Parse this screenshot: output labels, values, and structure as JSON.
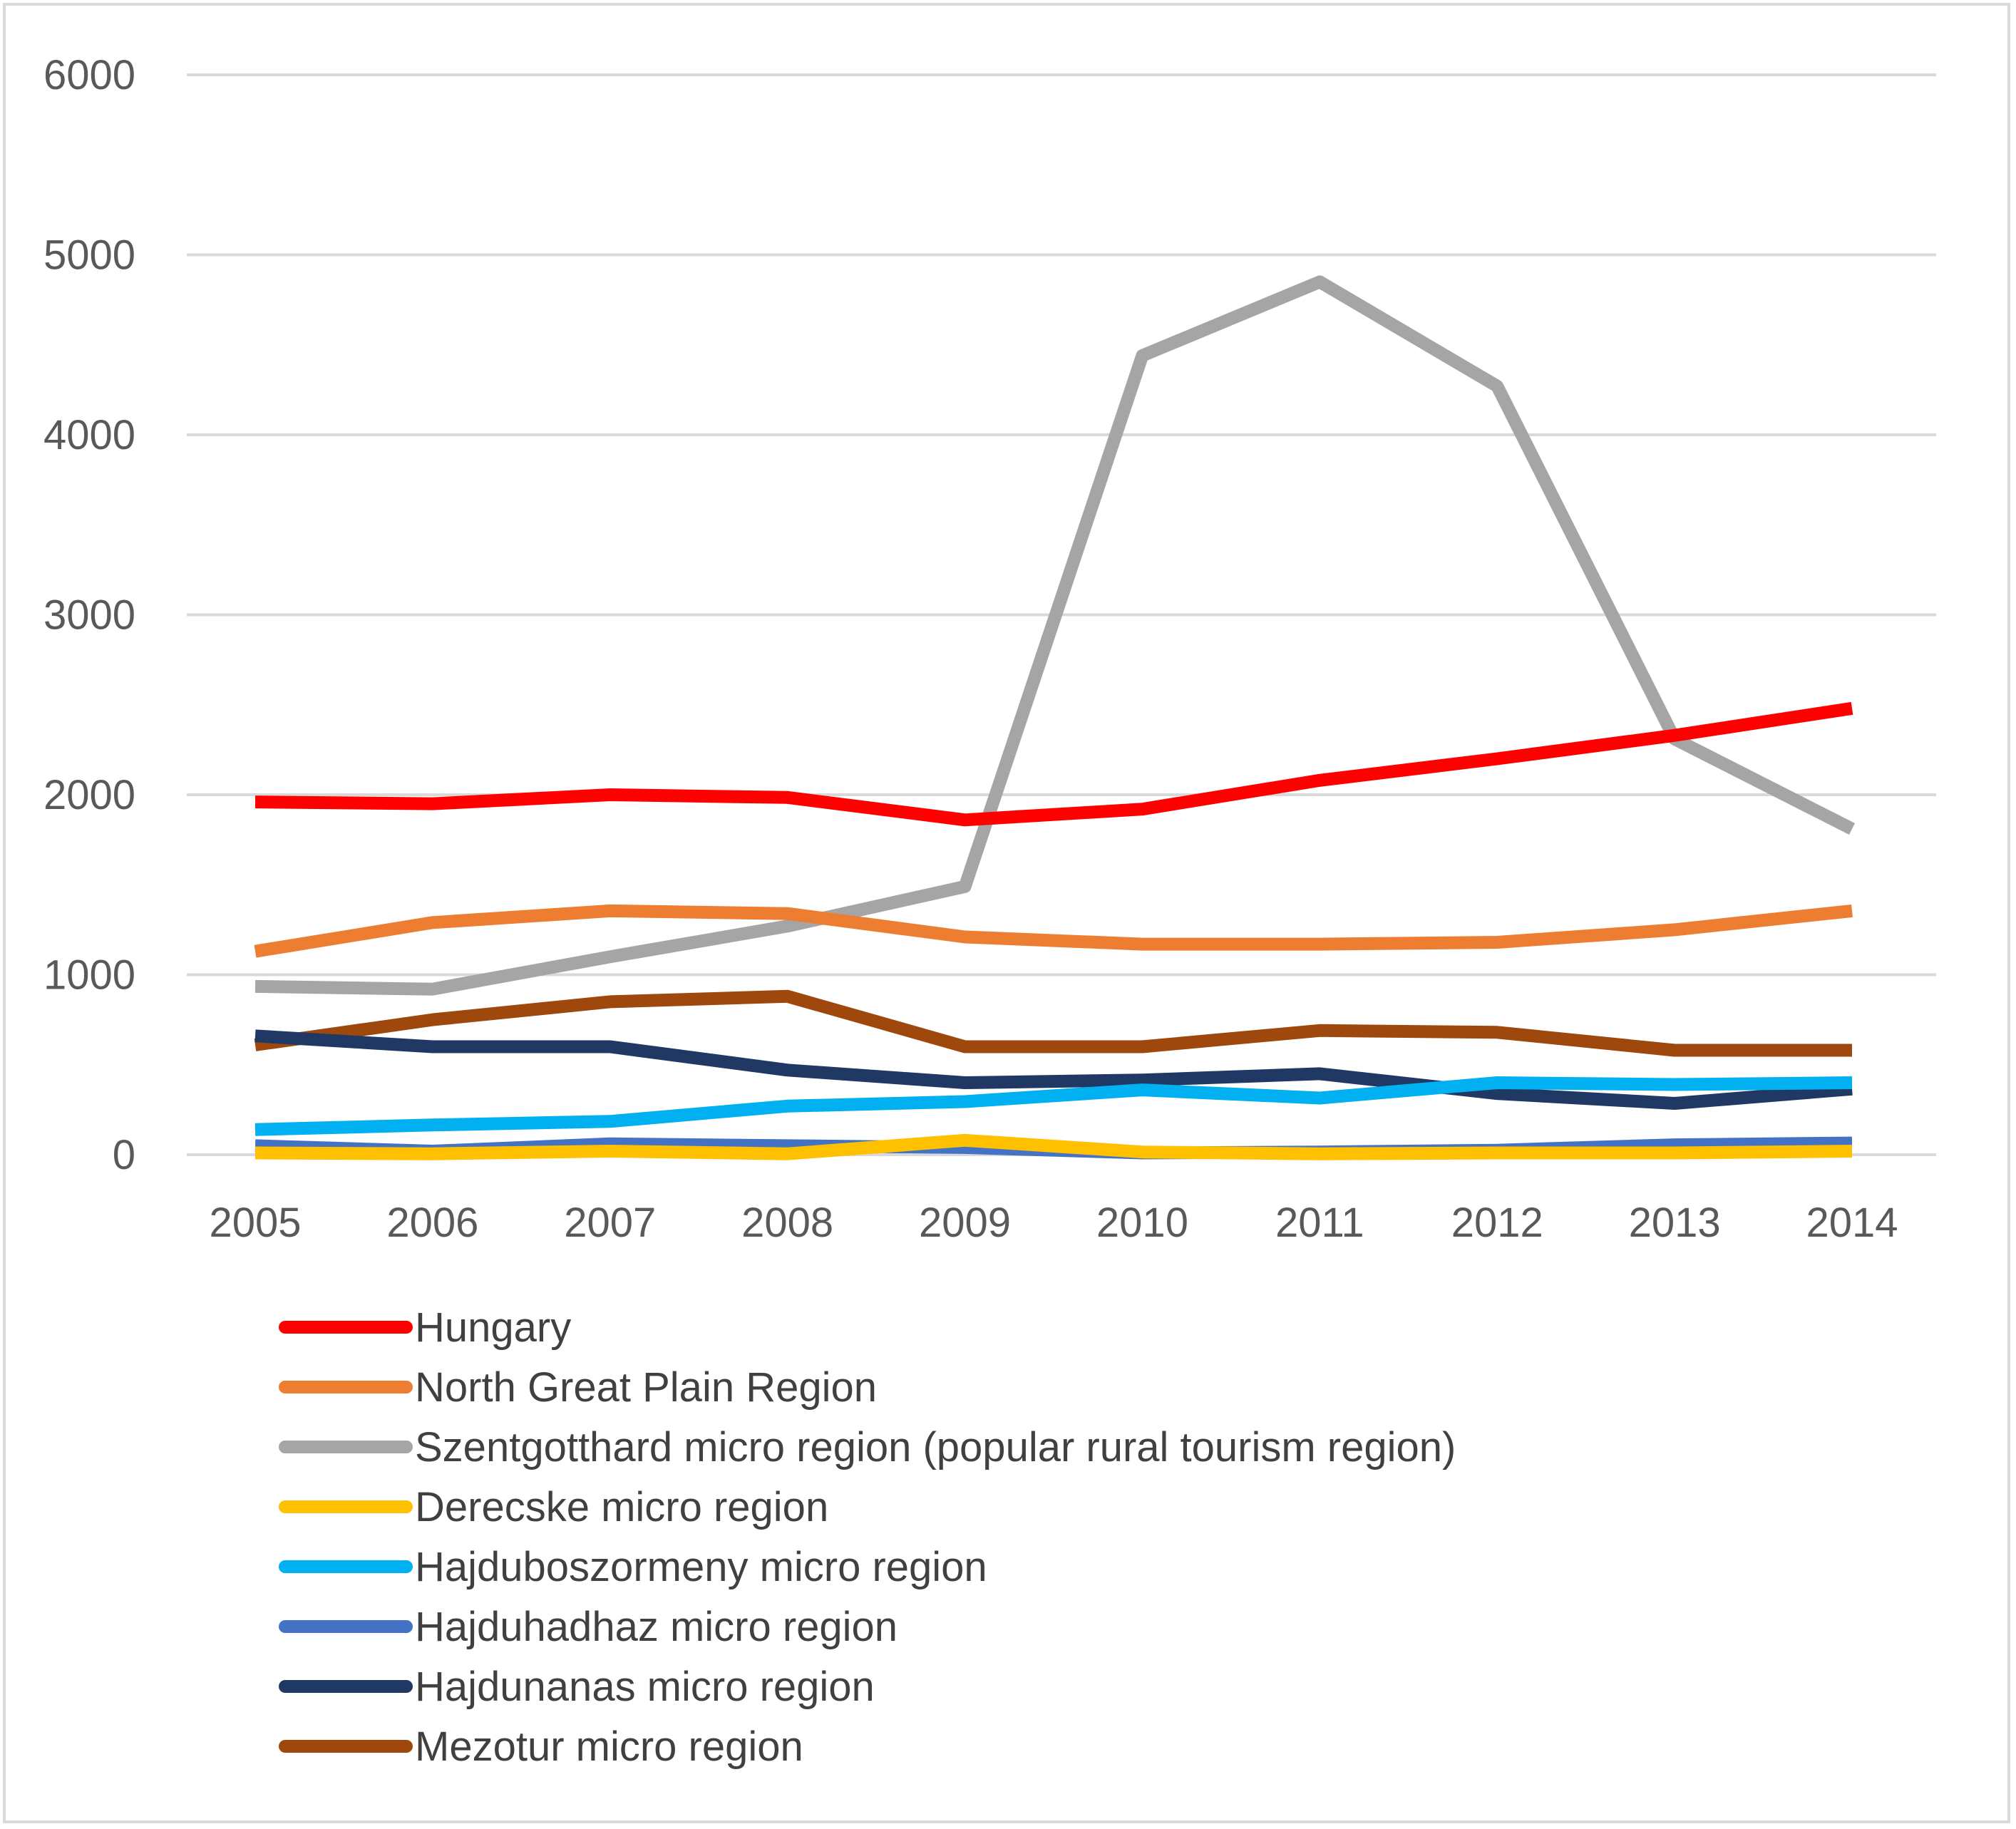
{
  "chart_data": {
    "type": "line",
    "title": "",
    "xlabel": "",
    "ylabel": "",
    "ylim": [
      0,
      6000
    ],
    "yticks": [
      0,
      1000,
      2000,
      3000,
      4000,
      5000,
      6000
    ],
    "grid": true,
    "legend_position": "bottom",
    "categories": [
      "2005",
      "2006",
      "2007",
      "2008",
      "2009",
      "2010",
      "2011",
      "2012",
      "2013",
      "2014"
    ],
    "series": [
      {
        "name": "Hungary",
        "color": "#ff0000",
        "values": [
          1960,
          1950,
          2000,
          1985,
          1860,
          1920,
          2080,
          2200,
          2330,
          2480
        ]
      },
      {
        "name": "North Great Plain Region",
        "color": "#ed7d31",
        "values": [
          1130,
          1290,
          1355,
          1340,
          1210,
          1170,
          1170,
          1180,
          1250,
          1355
        ]
      },
      {
        "name": "Szentgotthard micro region (popular rural tourism region)",
        "color": "#a5a5a5",
        "values": [
          935,
          920,
          1100,
          1270,
          1490,
          4440,
          4850,
          4270,
          2310,
          1810
        ]
      },
      {
        "name": "Derecske micro region",
        "color": "#ffc000",
        "values": [
          10,
          5,
          20,
          5,
          80,
          15,
          5,
          10,
          10,
          20
        ]
      },
      {
        "name": "Hajduboszormeny micro region",
        "color": "#00b0f0",
        "values": [
          140,
          165,
          185,
          270,
          295,
          360,
          315,
          400,
          390,
          400
        ]
      },
      {
        "name": "Hajduhadhaz micro region",
        "color": "#4472c4",
        "values": [
          50,
          20,
          60,
          50,
          40,
          10,
          15,
          25,
          55,
          65
        ]
      },
      {
        "name": "Hajdunanas micro region",
        "color": "#203864",
        "values": [
          660,
          600,
          600,
          470,
          400,
          415,
          450,
          340,
          285,
          365
        ]
      },
      {
        "name": "Mezotur micro region",
        "color": "#9e480e",
        "values": [
          610,
          750,
          850,
          880,
          600,
          600,
          690,
          680,
          580,
          580
        ]
      }
    ]
  }
}
